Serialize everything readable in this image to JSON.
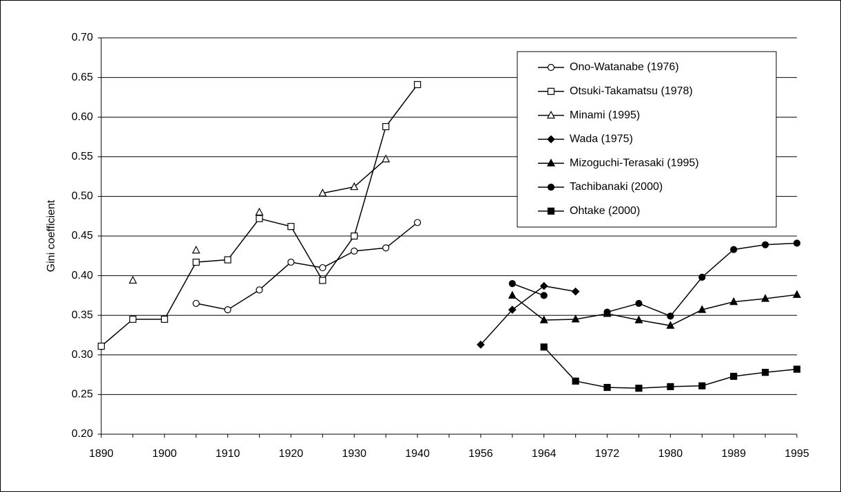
{
  "chart_data": {
    "type": "line",
    "y_label": "Gini coefficient",
    "categories": [
      "1890",
      null,
      "1900",
      null,
      "1910",
      null,
      "1920",
      null,
      "1930",
      null,
      "1940",
      null,
      "1956",
      null,
      "1964",
      null,
      "1972",
      null,
      "1980",
      null,
      "1989",
      null,
      "1995"
    ],
    "ylim": [
      0.2,
      0.7
    ],
    "yticks": [
      {
        "value": 0.2,
        "label": "0.20"
      },
      0.25,
      {
        "value": 0.3,
        "label": "0.30"
      },
      0.35,
      {
        "value": 0.4,
        "label": "0.40"
      },
      0.45,
      {
        "value": 0.5,
        "label": "0.50"
      },
      0.55,
      {
        "value": 0.6,
        "label": "0.60"
      },
      0.65,
      {
        "value": 0.7,
        "label": "0.70"
      }
    ],
    "grid": true,
    "legend": "upper right",
    "series": [
      {
        "name": "Ono-Watanabe (1976)",
        "color": "#000000",
        "marker": "circle",
        "filled": false,
        "values": [
          null,
          null,
          null,
          0.365,
          0.357,
          0.382,
          0.417,
          0.41,
          0.431,
          0.435,
          0.467,
          null,
          null,
          null,
          null,
          null,
          null,
          null,
          null,
          null,
          null,
          null,
          null
        ]
      },
      {
        "name": "Otsuki-Takamatsu (1978)",
        "color": "#000000",
        "marker": "square",
        "filled": false,
        "values": [
          0.311,
          0.345,
          0.345,
          0.417,
          0.42,
          0.472,
          0.462,
          0.394,
          0.45,
          0.588,
          0.641,
          null,
          null,
          null,
          null,
          null,
          null,
          null,
          null,
          null,
          null,
          null,
          null
        ]
      },
      {
        "name": "Minami (1995)",
        "color": "#000000",
        "marker": "triangle",
        "filled": false,
        "values": [
          null,
          0.394,
          null,
          0.432,
          null,
          0.48,
          null,
          0.504,
          0.512,
          0.547,
          null,
          null,
          null,
          null,
          null,
          null,
          null,
          null,
          null,
          null,
          null,
          null,
          null
        ]
      },
      {
        "name": "Wada (1975)",
        "color": "#000000",
        "marker": "diamond",
        "filled": true,
        "values": [
          null,
          null,
          null,
          null,
          null,
          null,
          null,
          null,
          null,
          null,
          null,
          null,
          0.313,
          0.357,
          0.387,
          0.38,
          null,
          null,
          null,
          null,
          null,
          null,
          null
        ]
      },
      {
        "name": "Mizoguchi-Terasaki (1995)",
        "color": "#000000",
        "marker": "triangle",
        "filled": true,
        "values": [
          null,
          null,
          null,
          null,
          null,
          null,
          null,
          null,
          null,
          null,
          null,
          null,
          null,
          0.375,
          0.344,
          0.345,
          0.352,
          0.344,
          0.337,
          0.357,
          0.367,
          0.371,
          0.376
        ]
      },
      {
        "name": "Tachibanaki (2000)",
        "color": "#000000",
        "marker": "circle",
        "filled": true,
        "values": [
          null,
          null,
          null,
          null,
          null,
          null,
          null,
          null,
          null,
          null,
          null,
          null,
          null,
          0.39,
          0.375,
          null,
          0.354,
          0.365,
          0.349,
          0.398,
          0.433,
          0.439,
          0.441
        ]
      },
      {
        "name": "Ohtake (2000)",
        "color": "#000000",
        "marker": "square",
        "filled": true,
        "values": [
          null,
          null,
          null,
          null,
          null,
          null,
          null,
          null,
          null,
          null,
          null,
          null,
          null,
          null,
          0.31,
          0.267,
          0.259,
          0.258,
          0.26,
          0.261,
          0.273,
          0.278,
          0.282
        ]
      }
    ]
  }
}
